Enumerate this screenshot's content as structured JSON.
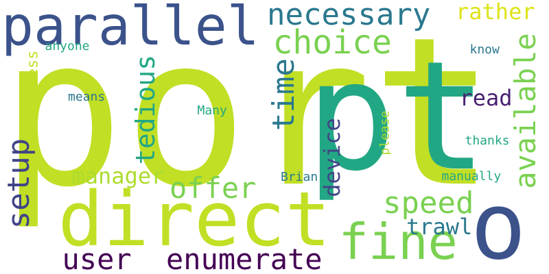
{
  "words": [
    {
      "text": "port",
      "color": "#c1df24"
    },
    {
      "text": "pt",
      "color": "#22a784"
    },
    {
      "text": "o",
      "color": "#3b528b"
    },
    {
      "text": "direct",
      "color": "#c1df24"
    },
    {
      "text": "parallel",
      "color": "#3b528b"
    },
    {
      "text": "fine",
      "color": "#7ad151"
    },
    {
      "text": "necessary",
      "color": "#2a788e"
    },
    {
      "text": "choice",
      "color": "#7ad151"
    },
    {
      "text": "rather",
      "color": "#dde318"
    },
    {
      "text": "available",
      "color": "#7ad151"
    },
    {
      "text": "time",
      "color": "#2a788e"
    },
    {
      "text": "setup",
      "color": "#414487"
    },
    {
      "text": "tedious",
      "color": "#22a784"
    },
    {
      "text": "offer",
      "color": "#7ad151"
    },
    {
      "text": "speed",
      "color": "#7ad151"
    },
    {
      "text": "user",
      "color": "#440154"
    },
    {
      "text": "enumerate",
      "color": "#440154"
    },
    {
      "text": "device",
      "color": "#414487"
    },
    {
      "text": "trawl",
      "color": "#2a788e"
    },
    {
      "text": "manager",
      "color": "#addc30"
    },
    {
      "text": "read",
      "color": "#482173"
    },
    {
      "text": "address",
      "color": "#c1df24"
    },
    {
      "text": "anyone",
      "color": "#22a784"
    },
    {
      "text": "know",
      "color": "#2a788e"
    },
    {
      "text": "means",
      "color": "#2a788e"
    },
    {
      "text": "Many",
      "color": "#22a784"
    },
    {
      "text": "thanks",
      "color": "#22a784"
    },
    {
      "text": "please",
      "color": "#addc30"
    },
    {
      "text": "Brian",
      "color": "#2a788e"
    },
    {
      "text": "manually",
      "color": "#22a784"
    }
  ]
}
